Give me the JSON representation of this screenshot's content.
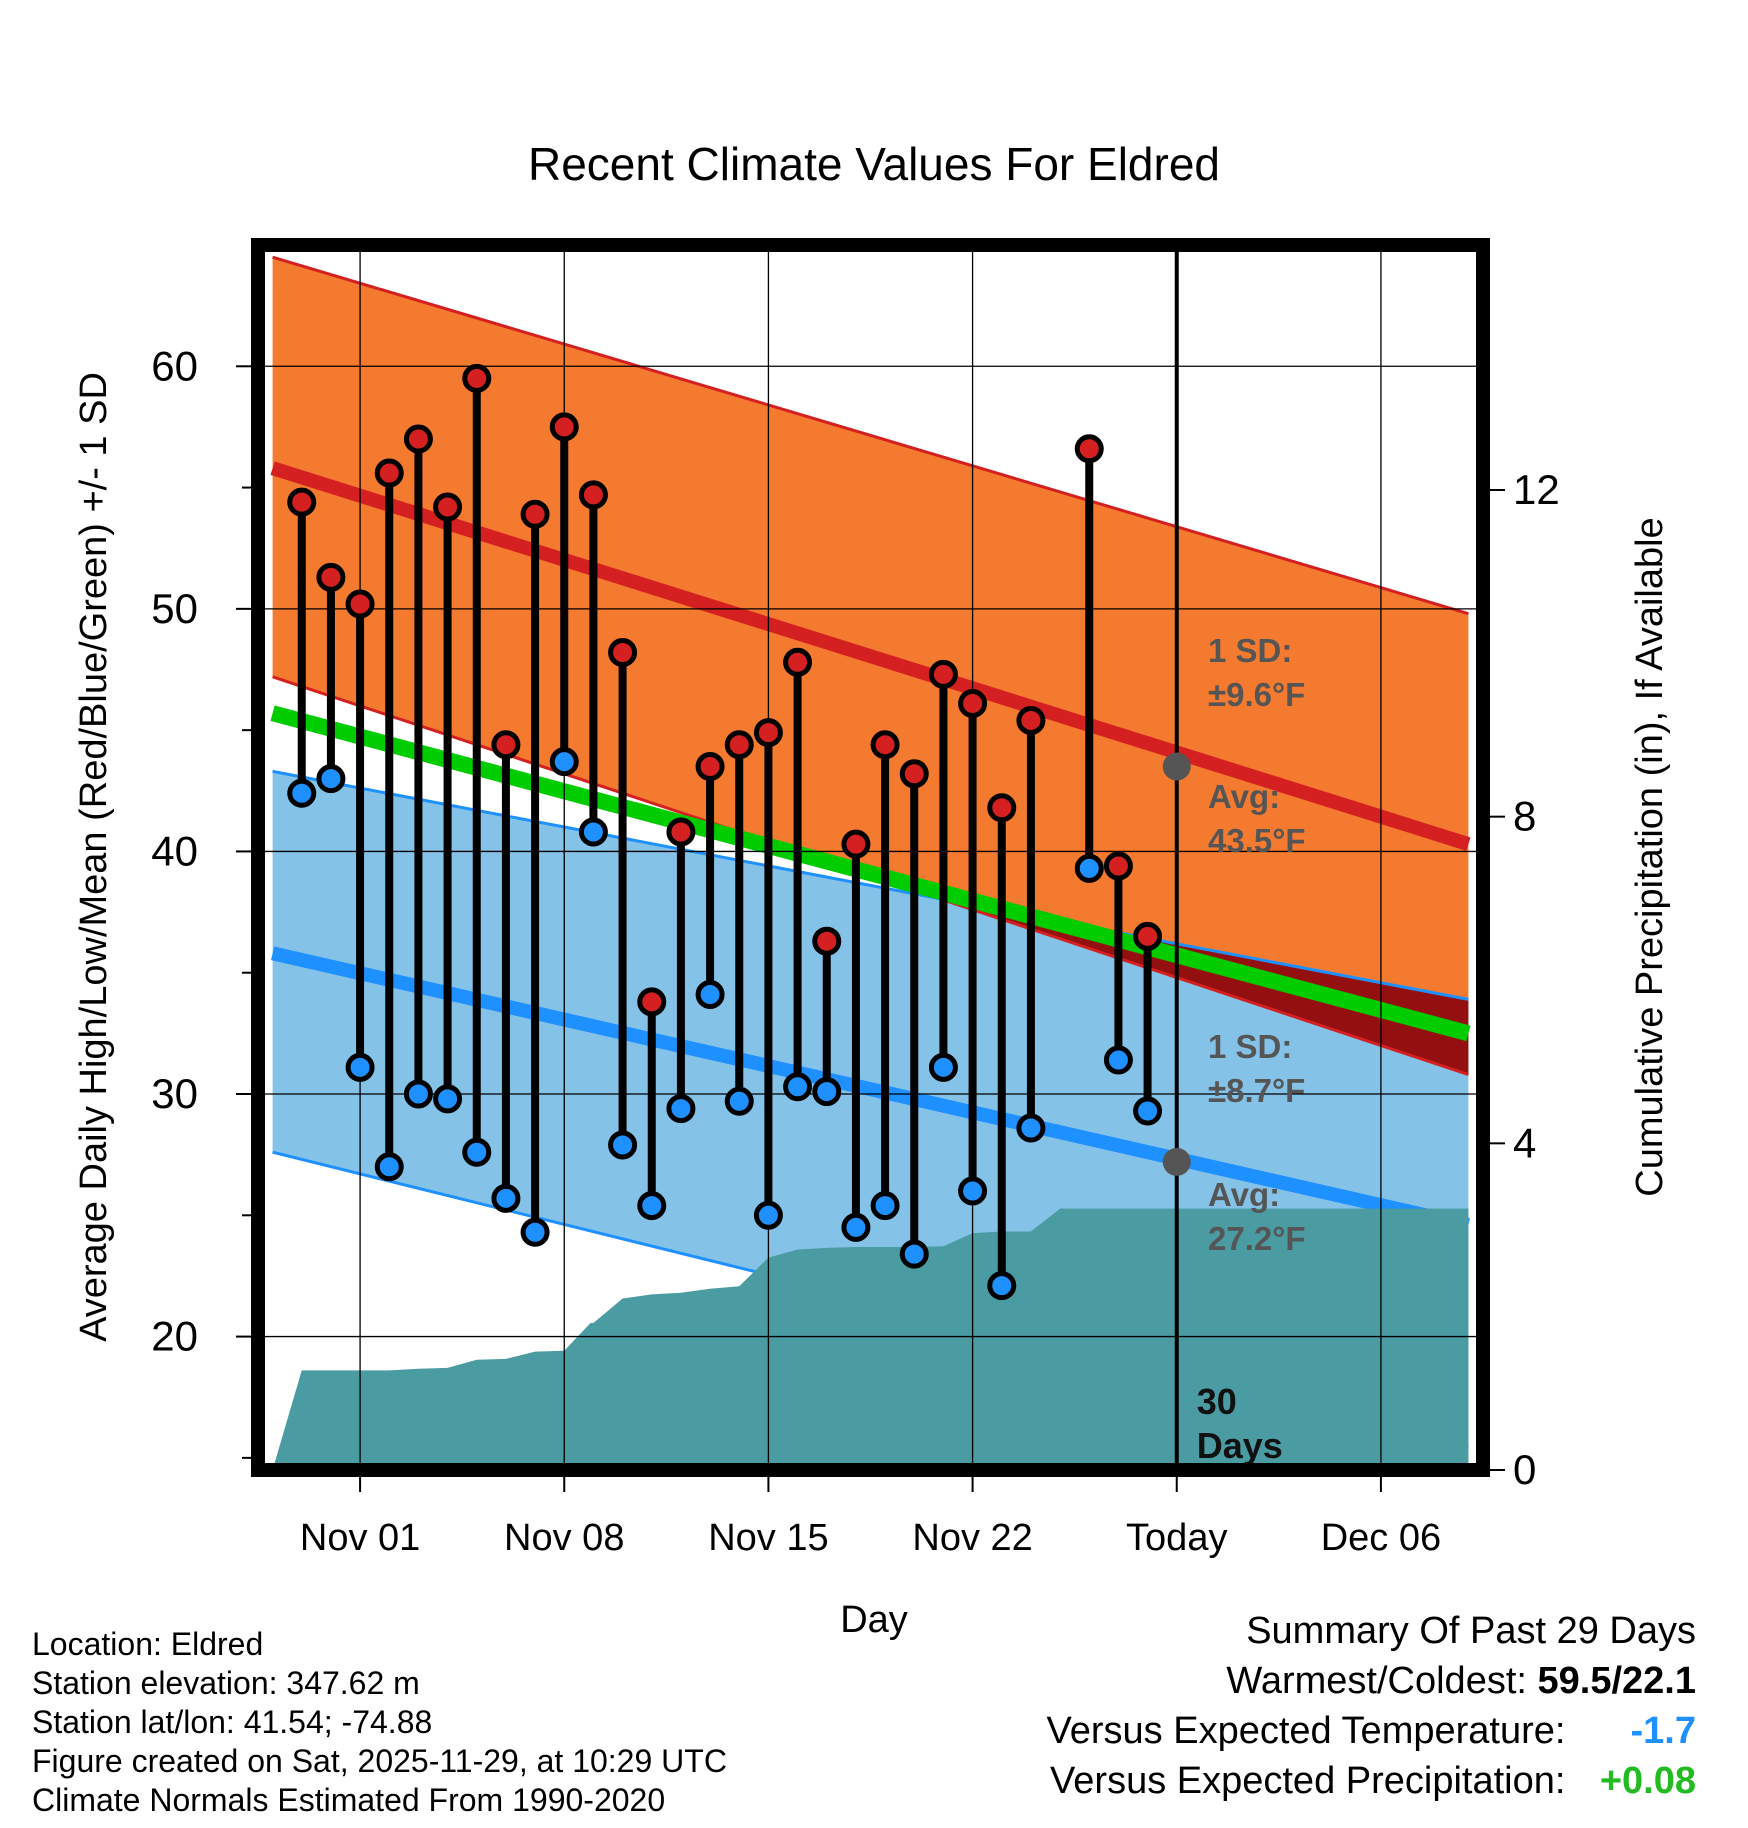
{
  "colors": {
    "orange_band": "#f47a30",
    "red_line": "#d42020",
    "blue_band": "#85c2e8",
    "blue_line": "#1e90ff",
    "green_line": "#00cc00",
    "dark_red_region": "#941010",
    "precip_fill": "#4a9ba2",
    "marker_gray": "#555555",
    "high_dot": "#d42020",
    "low_dot": "#1e90ff"
  },
  "chart_data": {
    "type": "line",
    "title": "Recent Climate Values For Eldred",
    "xlabel": "Day",
    "ylabel": "Average Daily High/Low/Mean (Red/Blue/Green) +/- 1 SD",
    "y2label": "Cumulative Precipitation (in), If Available",
    "ylim": [
      14.5,
      65
    ],
    "y2lim": [
      0,
      15
    ],
    "xlim": [
      -3.5,
      38.5
    ],
    "x_unit": "days since Nov 01",
    "x_tick_values": [
      0,
      7,
      14,
      21,
      28,
      35
    ],
    "x_tick_labels": [
      "Nov 01",
      "Nov 08",
      "Nov 15",
      "Nov 22",
      "Today",
      "Dec 06"
    ],
    "y_tick_values": [
      20,
      30,
      40,
      50,
      60
    ],
    "y_tick_labels": [
      "20",
      "30",
      "40",
      "50",
      "60"
    ],
    "y_minor_ticks": [
      15,
      25,
      35,
      45,
      55
    ],
    "y2_tick_values": [
      0,
      4,
      8,
      12
    ],
    "y2_tick_labels": [
      "0",
      "4",
      "8",
      "12"
    ],
    "grid": true,
    "today_x": 28,
    "today_label": "30\nDays",
    "normals": {
      "x": [
        -3,
        38
      ],
      "high_mean": [
        55.8,
        40.3
      ],
      "high_upper": [
        64.5,
        49.8
      ],
      "high_lower": [
        47.2,
        30.8
      ],
      "low_mean": [
        35.8,
        24.6
      ],
      "low_upper": [
        43.3,
        33.9
      ],
      "low_lower": [
        27.6,
        15.4
      ],
      "mean": [
        45.7,
        32.5
      ]
    },
    "annotations": {
      "high_sd": "1 SD:",
      "high_sd_value": "±9.6°F",
      "high_avg": "Avg:",
      "high_avg_value": "43.5°F",
      "high_avg_point": 43.5,
      "low_sd": "1 SD:",
      "low_sd_value": "±8.7°F",
      "low_avg": "Avg:",
      "low_avg_value": "27.2°F",
      "low_avg_point": 27.2
    },
    "series": [
      {
        "name": "Daily High",
        "x": [
          -2,
          -1,
          0,
          1,
          2,
          3,
          4,
          5,
          6,
          7,
          8,
          9,
          10,
          11,
          12,
          13,
          14,
          15,
          16,
          17,
          18,
          19,
          20,
          21,
          22,
          23,
          24,
          25,
          26,
          27
        ],
        "values": [
          54.4,
          51.3,
          50.2,
          55.6,
          57.0,
          54.2,
          59.5,
          44.4,
          53.9,
          57.5,
          54.7,
          48.2,
          33.8,
          40.8,
          43.5,
          44.4,
          44.9,
          47.8,
          36.3,
          40.3,
          44.4,
          43.2,
          47.3,
          46.1,
          41.8,
          45.4,
          null,
          56.6,
          39.4,
          36.5
        ]
      },
      {
        "name": "Daily Low",
        "x": [
          -2,
          -1,
          0,
          1,
          2,
          3,
          4,
          5,
          6,
          7,
          8,
          9,
          10,
          11,
          12,
          13,
          14,
          15,
          16,
          17,
          18,
          19,
          20,
          21,
          22,
          23,
          24,
          25,
          26,
          27
        ],
        "values": [
          42.4,
          43.0,
          31.1,
          27.0,
          30.0,
          29.8,
          27.6,
          25.7,
          24.3,
          43.7,
          40.8,
          27.9,
          25.4,
          29.4,
          34.1,
          29.7,
          25.0,
          30.3,
          30.1,
          24.5,
          25.4,
          23.4,
          31.1,
          26.0,
          22.1,
          28.6,
          null,
          39.3,
          31.4,
          29.3
        ]
      }
    ],
    "precipitation": {
      "name": "Cumulative Precipitation",
      "x": [
        -3,
        -2,
        0,
        1,
        2,
        3,
        4,
        5,
        6,
        7,
        7.9,
        8,
        9,
        10,
        11,
        12,
        13,
        14,
        15,
        16,
        17,
        18,
        19,
        20,
        21,
        22,
        23,
        24,
        25,
        26,
        27,
        28,
        38
      ],
      "values": [
        0,
        1.22,
        1.22,
        1.22,
        1.24,
        1.25,
        1.35,
        1.36,
        1.45,
        1.46,
        1.8,
        1.8,
        2.1,
        2.15,
        2.17,
        2.22,
        2.25,
        2.6,
        2.7,
        2.72,
        2.73,
        2.73,
        2.73,
        2.74,
        2.9,
        2.92,
        2.92,
        3.2,
        3.2,
        3.2,
        3.2,
        3.2,
        3.2
      ]
    }
  },
  "footer": {
    "location": "Location: Eldred",
    "elevation": "Station elevation: 347.62 m",
    "latlon": "Station lat/lon: 41.54; -74.88",
    "created": "Figure created on Sat, 2025-11-29, at 10:29 UTC",
    "normals": "Climate Normals Estimated From 1990-2020"
  },
  "summary": {
    "title": "Summary Of Past 29 Days",
    "warm_cold_label": "Warmest/Coldest:",
    "warm_cold_value": "59.5/22.1",
    "temp_label": "Versus Expected Temperature:",
    "temp_value": "-1.7",
    "precip_label": "Versus Expected Precipitation:",
    "precip_value": "+0.08"
  }
}
